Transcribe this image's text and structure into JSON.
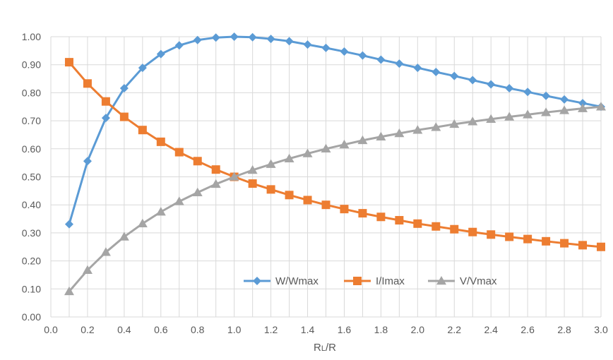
{
  "chart_data": {
    "type": "line",
    "xlabel_main": "R",
    "xlabel_sub": "L",
    "xlabel_tail": "/R",
    "xlim": [
      0.0,
      3.0
    ],
    "ylim": [
      0.0,
      1.0
    ],
    "x_ticks": [
      "0.0",
      "0.2",
      "0.4",
      "0.6",
      "0.8",
      "1.0",
      "1.2",
      "1.4",
      "1.6",
      "1.8",
      "2.0",
      "2.2",
      "2.4",
      "2.6",
      "2.8",
      "3.0"
    ],
    "y_ticks": [
      "0.00",
      "0.10",
      "0.20",
      "0.30",
      "0.40",
      "0.50",
      "0.60",
      "0.70",
      "0.80",
      "0.90",
      "1.00"
    ],
    "grid": true,
    "legend_position": "bottom-right",
    "x": [
      0.1,
      0.2,
      0.3,
      0.4,
      0.5,
      0.6,
      0.7,
      0.8,
      0.9,
      1.0,
      1.1,
      1.2,
      1.3,
      1.4,
      1.5,
      1.6,
      1.7,
      1.8,
      1.9,
      2.0,
      2.1,
      2.2,
      2.3,
      2.4,
      2.5,
      2.6,
      2.7,
      2.8,
      2.9,
      3.0
    ],
    "series": [
      {
        "name": "W/Wmax",
        "color": "#5B9BD5",
        "marker": "diamond",
        "values": [
          0.331,
          0.556,
          0.71,
          0.816,
          0.889,
          0.938,
          0.969,
          0.988,
          0.997,
          1.0,
          0.998,
          0.992,
          0.984,
          0.972,
          0.96,
          0.947,
          0.933,
          0.918,
          0.904,
          0.889,
          0.874,
          0.86,
          0.845,
          0.83,
          0.816,
          0.803,
          0.789,
          0.776,
          0.763,
          0.75
        ]
      },
      {
        "name": "I/Imax",
        "color": "#ED7D31",
        "marker": "square",
        "values": [
          0.909,
          0.833,
          0.769,
          0.714,
          0.667,
          0.625,
          0.588,
          0.556,
          0.526,
          0.5,
          0.476,
          0.455,
          0.435,
          0.417,
          0.4,
          0.385,
          0.37,
          0.357,
          0.345,
          0.333,
          0.323,
          0.313,
          0.303,
          0.294,
          0.286,
          0.278,
          0.27,
          0.263,
          0.256,
          0.25
        ]
      },
      {
        "name": "V/Vmax",
        "color": "#A5A5A5",
        "marker": "triangle",
        "values": [
          0.091,
          0.167,
          0.231,
          0.286,
          0.333,
          0.375,
          0.412,
          0.444,
          0.474,
          0.5,
          0.524,
          0.545,
          0.565,
          0.583,
          0.6,
          0.615,
          0.63,
          0.643,
          0.655,
          0.667,
          0.677,
          0.688,
          0.697,
          0.706,
          0.714,
          0.722,
          0.73,
          0.737,
          0.744,
          0.75
        ]
      }
    ]
  },
  "colors": {
    "grid": "#D9D9D9",
    "text": "#595959",
    "background": "#FFFFFF"
  }
}
